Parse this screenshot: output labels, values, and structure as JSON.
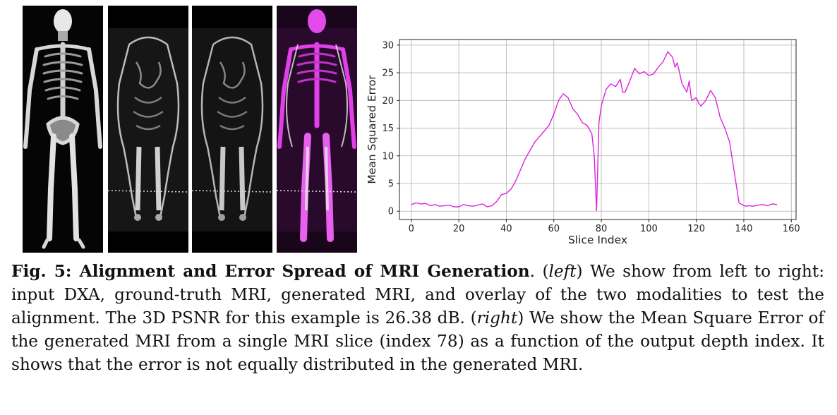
{
  "figure": {
    "panels": [
      {
        "name": "input-dxa",
        "modality": "DXA"
      },
      {
        "name": "ground-truth-mri",
        "modality": "MRI"
      },
      {
        "name": "generated-mri",
        "modality": "MRI"
      },
      {
        "name": "overlay",
        "modality": "overlay"
      }
    ],
    "overlay_color": "#e040e8"
  },
  "chart_data": {
    "type": "line",
    "title": "",
    "xlabel": "Slice Index",
    "ylabel": "Mean Squared Error",
    "xlim": [
      -5,
      162
    ],
    "ylim": [
      -1.5,
      31
    ],
    "xticks": [
      0,
      20,
      40,
      60,
      80,
      100,
      120,
      140,
      160
    ],
    "yticks": [
      0,
      5,
      10,
      15,
      20,
      25,
      30
    ],
    "grid": true,
    "color": "#dd22dd",
    "series": [
      {
        "x": [
          0,
          2,
          4,
          6,
          8,
          10,
          12,
          14,
          16,
          18,
          20,
          22,
          24,
          26,
          28,
          30,
          32,
          34,
          36,
          38,
          40,
          42,
          44,
          46,
          48,
          50,
          52,
          54,
          56,
          58,
          60,
          62,
          64,
          66,
          68,
          70,
          72,
          74,
          76,
          77,
          78,
          79,
          80,
          82,
          84,
          86,
          88,
          89,
          90,
          92,
          94,
          96,
          98,
          100,
          102,
          104,
          106,
          108,
          110,
          111,
          112,
          114,
          116,
          117,
          118,
          120,
          121,
          122,
          124,
          126,
          128,
          130,
          132,
          134,
          136,
          138,
          140,
          141,
          142,
          144,
          146,
          148,
          150,
          152,
          154
        ],
        "y": [
          1.2,
          1.5,
          1.3,
          1.4,
          1.0,
          1.2,
          0.9,
          1.0,
          1.1,
          0.8,
          0.8,
          1.2,
          1.0,
          0.9,
          1.1,
          1.3,
          0.8,
          1.0,
          1.8,
          3.0,
          3.2,
          4.0,
          5.5,
          7.5,
          9.5,
          11.0,
          12.5,
          13.5,
          14.5,
          15.5,
          17.5,
          20.0,
          21.2,
          20.5,
          18.5,
          17.5,
          16.0,
          15.5,
          14.0,
          10.0,
          0.1,
          16.0,
          19.0,
          22.0,
          23.0,
          22.5,
          23.8,
          21.5,
          21.5,
          23.5,
          25.8,
          24.8,
          25.2,
          24.5,
          24.8,
          26.0,
          27.0,
          28.8,
          27.8,
          26.0,
          26.8,
          23.0,
          21.5,
          23.5,
          20.0,
          20.5,
          19.5,
          19.0,
          20.0,
          21.8,
          20.5,
          17.0,
          15.0,
          12.5,
          7.0,
          1.5,
          1.0,
          0.9,
          1.0,
          0.9,
          1.1,
          1.2,
          1.0,
          1.3,
          1.2
        ]
      }
    ]
  },
  "caption": {
    "label": "Fig. 5: Alignment and Error Spread of MRI Generation",
    "period_after_label": ".",
    "left_tag": "left",
    "text_left": "We show from left to right: input DXA, ground-truth MRI, generated MRI, and overlay of the two modalities to test the alignment. The 3D PSNR for this example is 26.38 dB.",
    "right_tag": "right",
    "text_right": "We show the Mean Square Error of the generated MRI from a single MRI slice (index 78) as a function of the output depth index. It shows that the error is not equally distributed in the generated MRI."
  }
}
